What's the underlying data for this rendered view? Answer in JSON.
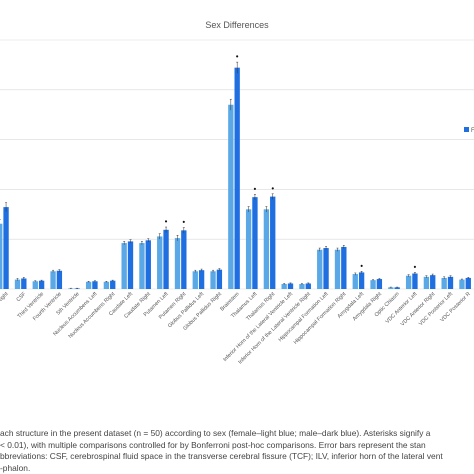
{
  "chart_data": {
    "type": "bar",
    "title": "Sex Differences",
    "legend_label_partial": "F",
    "categories": [
      "Lateral Ventricle Right",
      "CSF",
      "Third Ventricle",
      "Fourth Ventricle",
      "5th Ventricle",
      "Nucleus Accumbens Left",
      "Nucleus Accumbens Right",
      "Caudate Left",
      "Caudate Right",
      "Putamen Left",
      "Putamen Right",
      "Globus Pallidus Left",
      "Globus Pallidus Right",
      "Brainstem",
      "Thalamus Left",
      "Thalamus Right",
      "Inferior Horn of the Lateral Ventricle Left",
      "Inferior Horn of the Lateral Ventricle Right",
      "Hippocampal Formation Left",
      "Hippocampal Formation Right",
      "Amygdala Left",
      "Amygdala Right",
      "Optic Chiasm",
      "VDC Anterior Left",
      "VDC Anterior Right",
      "VDC Posterior Left",
      "VDC Posterior Right"
    ],
    "visible_category_labels": [
      "cle Right",
      "CSF",
      "Third Ventricle",
      "Fourth Ventricle",
      "5th Ventricle",
      "Nucleus Accumbens Left",
      "Nucleus Accumbens Right",
      "Caudate Left",
      "Caudate Right",
      "Putamen Left",
      "Putamen Right",
      "Globus Pallidus Left",
      "Globus Pallidus Right",
      "Brainstem",
      "Thalamus Left",
      "Thalamus Right",
      "Inferior Horn of the Lateral Ventricle Left",
      "Inferior Horn of the Lateral Ventricle Right",
      "Hippocampal Formation Left",
      "Hippocampal Formation Right",
      "Amygdala Left",
      "Amygdala Right",
      "Optic Chiasm",
      "VDC Anterior Left",
      "VDC Anterior Right",
      "VDC Posterior Left",
      "VDC Posterior R"
    ],
    "series": [
      {
        "name": "female",
        "color": "#5aa9e6",
        "values": [
          11.8,
          1.7,
          1.4,
          3.2,
          0.1,
          1.3,
          1.3,
          8.3,
          8.3,
          9.5,
          9.2,
          3.2,
          3.2,
          33.3,
          14.4,
          14.4,
          0.9,
          0.9,
          7.1,
          7.1,
          2.7,
          1.6,
          0.3,
          2.4,
          2.2,
          2.0,
          1.7
        ]
      },
      {
        "name": "male",
        "color": "#1f6fe0",
        "values": [
          14.8,
          1.9,
          1.5,
          3.3,
          0.1,
          1.4,
          1.5,
          8.6,
          8.8,
          10.7,
          10.6,
          3.4,
          3.5,
          40.0,
          16.6,
          16.7,
          1.0,
          1.0,
          7.4,
          7.6,
          3.0,
          1.8,
          0.3,
          2.8,
          2.5,
          2.2,
          2.0
        ]
      }
    ],
    "error_bars": [
      0.8,
      0.2,
      0.1,
      0.2,
      0.05,
      0.1,
      0.1,
      0.3,
      0.3,
      0.5,
      0.5,
      0.2,
      0.2,
      1.0,
      0.5,
      0.5,
      0.1,
      0.1,
      0.3,
      0.3,
      0.2,
      0.1,
      0.05,
      0.2,
      0.2,
      0.2,
      0.1
    ],
    "significant": [
      false,
      false,
      false,
      false,
      false,
      false,
      false,
      false,
      false,
      true,
      true,
      false,
      false,
      true,
      true,
      true,
      false,
      false,
      false,
      false,
      true,
      false,
      false,
      true,
      false,
      false,
      false
    ],
    "significance_marker": "•",
    "ylim": [
      0,
      45
    ],
    "grid": true,
    "legend_position": "right"
  },
  "caption": {
    "line1": "ach structure in the present dataset (n = 50) according to sex (female–light blue; male–dark blue). Asterisks signify a",
    "line2": "< 0.01), with multiple comparisons controlled for by Bonferroni post-hoc comparisons. Error bars represent the stan",
    "line3": "bbreviations: CSF, cerebrospinal fluid space in the transverse cerebral fissure (TCF); ILV, inferior horn of the lateral vent",
    "line4": "-phalon."
  }
}
